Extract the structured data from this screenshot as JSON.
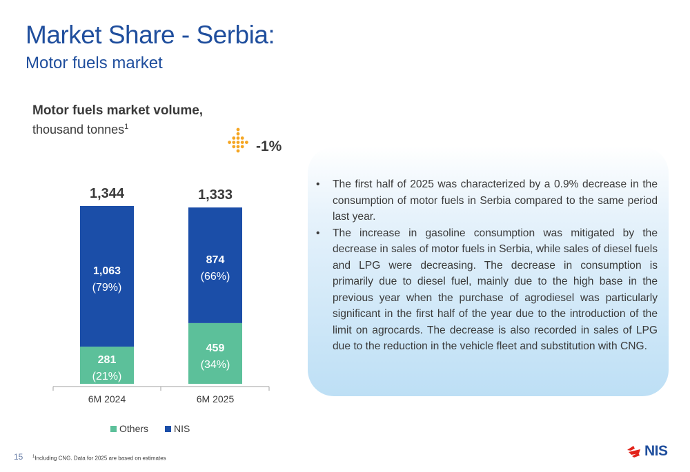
{
  "slide": {
    "title": "Market Share - Serbia:",
    "subtitle": "Motor fuels market",
    "page_number": "15",
    "footnote_marker": "1",
    "footnote": "Including CNG. Data for 2025 are based on estimates",
    "logo_text": "NIS"
  },
  "chart_data": {
    "type": "bar",
    "stacked": true,
    "title": "Motor fuels market volume,",
    "subtitle": "thousand tonnes",
    "subtitle_marker": "1",
    "categories": [
      "6M 2024",
      "6M 2025"
    ],
    "totals": [
      "1,344",
      "1,333"
    ],
    "total_values": [
      1344,
      1333
    ],
    "series": [
      {
        "name": "Others",
        "color": "#5cc09a",
        "values": [
          281,
          459
        ],
        "value_labels": [
          "281",
          "459"
        ],
        "share_labels": [
          "(21%)",
          "(34%)"
        ]
      },
      {
        "name": "NIS",
        "color": "#1b4ea8",
        "values": [
          1063,
          874
        ],
        "value_labels": [
          "1,063",
          "874"
        ],
        "share_labels": [
          "(79%)",
          "(66%)"
        ]
      }
    ],
    "change_label": "-1%",
    "change_icon": "dotted-down-arrow-icon",
    "ylim": [
      0,
      1344
    ]
  },
  "info": {
    "bullets": [
      "The first half of 2025 was characterized by a 0.9% decrease in the consumption of motor fuels in Serbia compared to the same period last year.",
      "The increase in gasoline consumption was mitigated by the decrease in sales of motor fuels in Serbia, while sales of diesel fuels and LPG were decreasing. The decrease in consumption is primarily due to diesel fuel, mainly due to the high base in the previous year when the purchase of agrodiesel was particularly significant in the first half of the year due to the introduction of the limit on agrocards. The decrease is also recorded in sales of LPG due to the reduction in the vehicle fleet and substitution with CNG."
    ],
    "bullet_char": "•"
  },
  "colors": {
    "title": "#1f4e9d",
    "arrow": "#f5a623"
  }
}
